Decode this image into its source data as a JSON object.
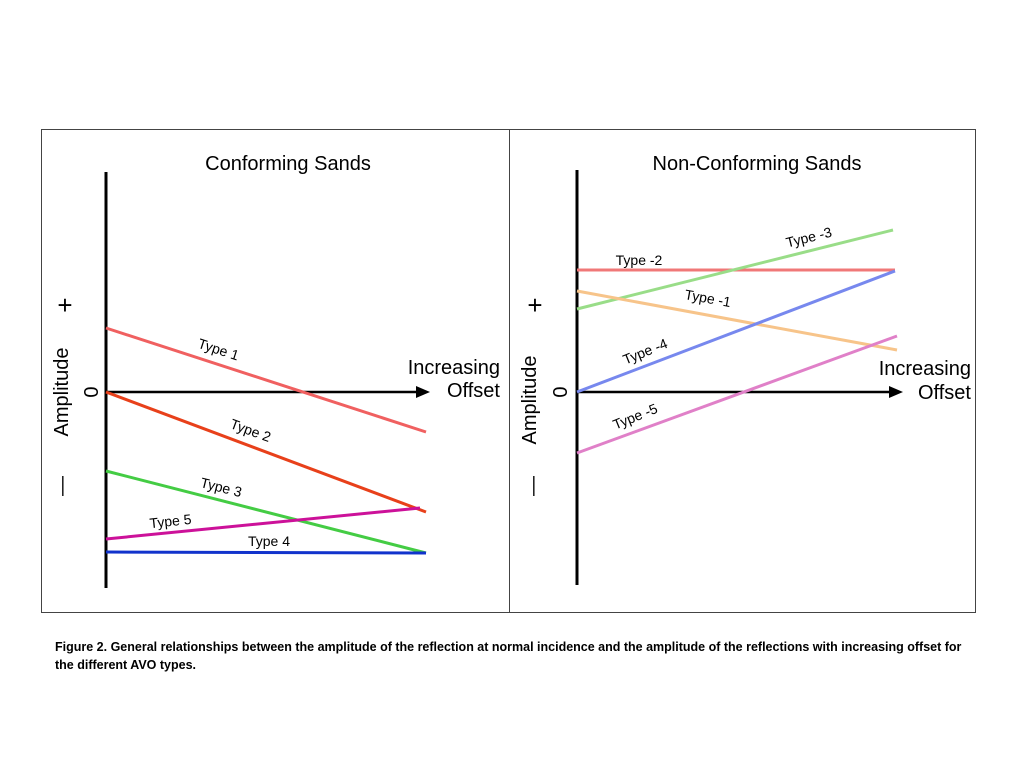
{
  "panels": [
    {
      "id": "conforming",
      "title": "Conforming Sands",
      "plus_sign": "+",
      "zero_label": "0",
      "minus_sign": "—",
      "y_axis_label": "Amplitude",
      "x_axis_label_line1": "Increasing",
      "x_axis_label_line2": "Offset",
      "lines": [
        {
          "name": "Type 1",
          "color": "#f06060",
          "start": 0.5,
          "end": -0.32
        },
        {
          "name": "Type 2",
          "color": "#e8401a",
          "start": 0.0,
          "end": -0.99
        },
        {
          "name": "Type 3",
          "color": "#44cc44",
          "start": -0.64,
          "end": -1.32
        },
        {
          "name": "Type 5",
          "color": "#cc1199",
          "start": -1.17,
          "end": -0.94
        },
        {
          "name": "Type 4",
          "color": "#1133cc",
          "start": -1.28,
          "end": -1.28
        }
      ]
    },
    {
      "id": "non-conforming",
      "title": "Non-Conforming Sands",
      "plus_sign": "+",
      "zero_label": "0",
      "minus_sign": "—",
      "y_axis_label": "Amplitude",
      "x_axis_label_line1": "Increasing",
      "x_axis_label_line2": "Offset",
      "lines": [
        {
          "name": "Type -2",
          "color": "#f07878",
          "start": 1.0,
          "end": 1.0
        },
        {
          "name": "Type -3",
          "color": "#99dd88",
          "start": 0.67,
          "end": 1.28
        },
        {
          "name": "Type -1",
          "color": "#f7c48a",
          "start": 0.8,
          "end": 0.33
        },
        {
          "name": "Type -4",
          "color": "#7788ee",
          "start": 0.0,
          "end": 0.98
        },
        {
          "name": "Type -5",
          "color": "#e080c8",
          "start": -0.5,
          "end": 0.44
        }
      ]
    }
  ],
  "caption": "Figure 2.  General relationships between the amplitude of the reflection at normal incidence and the amplitude of the reflections with increasing offset for the different AVO types."
}
